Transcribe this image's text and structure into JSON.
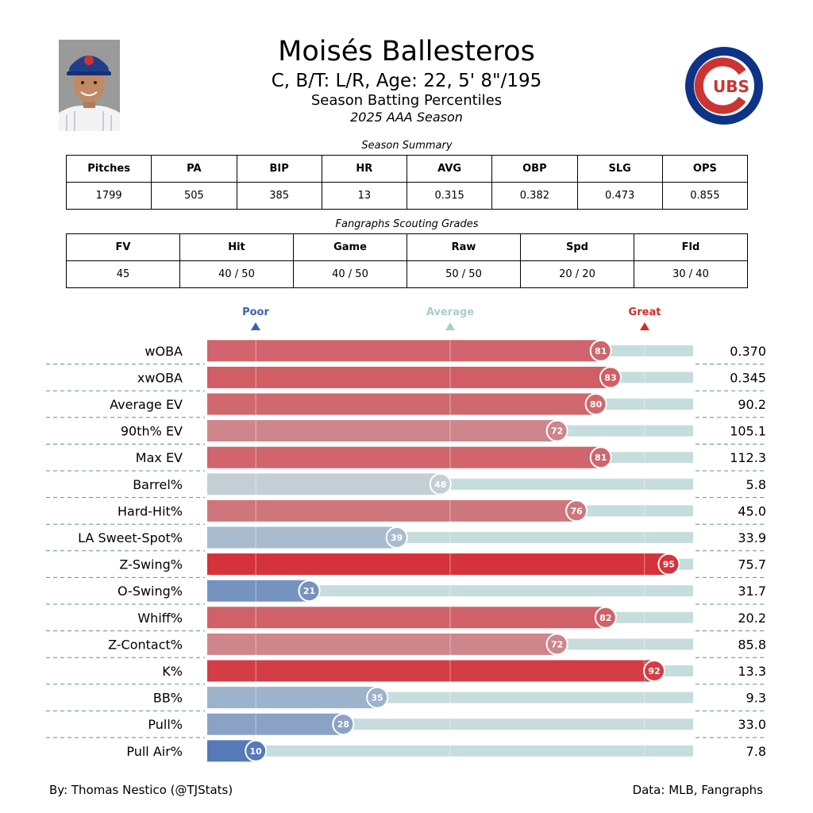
{
  "header": {
    "name": "Moisés Ballesteros",
    "info": "C, B/T: L/R, Age: 22, 5' 8\"/195",
    "subtitle": "Season Batting Percentiles",
    "season": "2025 AAA Season"
  },
  "logo": {
    "text": "UBS",
    "letter": "C",
    "colors": {
      "blue": "#0E3386",
      "red": "#CC3433"
    }
  },
  "summary": {
    "title": "Season Summary",
    "headers": [
      "Pitches",
      "PA",
      "BIP",
      "HR",
      "AVG",
      "OBP",
      "SLG",
      "OPS"
    ],
    "values": [
      "1799",
      "505",
      "385",
      "13",
      "0.315",
      "0.382",
      "0.473",
      "0.855"
    ]
  },
  "grades": {
    "title": "Fangraphs Scouting Grades",
    "headers": [
      "FV",
      "Hit",
      "Game",
      "Raw",
      "Spd",
      "Fld"
    ],
    "values": [
      "45",
      "40 / 50",
      "40 / 50",
      "50 / 50",
      "20 / 20",
      "30 / 40"
    ]
  },
  "scale": {
    "poor": "Poor",
    "average": "Average",
    "great": "Great",
    "colors": {
      "poor": "#3A62B0",
      "average": "#A9CCD0",
      "great": "#D42B2B",
      "track": "#C7DCDD"
    }
  },
  "chart_data": {
    "type": "bar",
    "orientation": "horizontal",
    "xlim": [
      0,
      100
    ],
    "categories": [
      "wOBA",
      "xwOBA",
      "Average EV",
      "90th% EV",
      "Max EV",
      "Barrel%",
      "Hard-Hit%",
      "LA Sweet-Spot%",
      "Z-Swing%",
      "O-Swing%",
      "Whiff%",
      "Z-Contact%",
      "K%",
      "BB%",
      "Pull%",
      "Pull Air%"
    ],
    "percentiles": [
      81,
      83,
      80,
      72,
      81,
      48,
      76,
      39,
      95,
      21,
      82,
      72,
      92,
      35,
      28,
      10
    ],
    "stat_values": [
      "0.370",
      "0.345",
      "90.2",
      "105.1",
      "112.3",
      "5.8",
      "45.0",
      "33.9",
      "75.7",
      "31.7",
      "20.2",
      "85.8",
      "13.3",
      "9.3",
      "33.0",
      "7.8"
    ]
  },
  "footer": {
    "credit": "By: Thomas Nestico (@TJStats)",
    "source": "Data: MLB, Fangraphs"
  }
}
